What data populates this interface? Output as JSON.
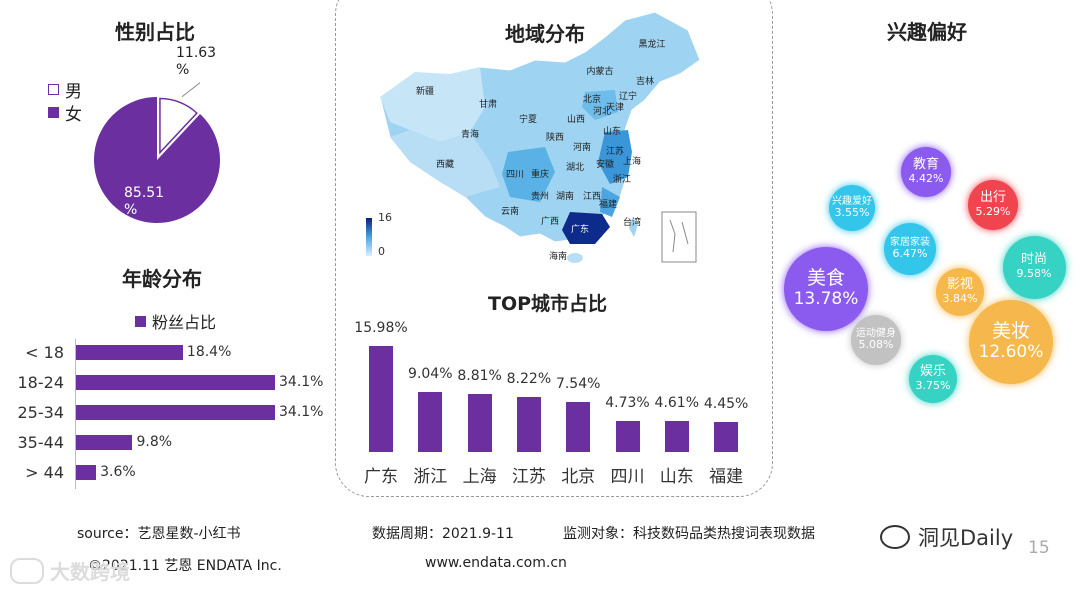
{
  "gender": {
    "title": "性别占比",
    "legend": [
      {
        "label": "男",
        "color": "#6b2fa0",
        "hollow": true
      },
      {
        "label": "女",
        "color": "#6b2fa0",
        "hollow": false
      }
    ],
    "labels": {
      "male": "11.63\n%",
      "female": "85.51\n%"
    }
  },
  "age": {
    "title": "年龄分布",
    "legend_label": "粉丝占比",
    "color": "#6b2fa0"
  },
  "region": {
    "title": "地域分布",
    "scale_max": "16",
    "scale_min": "0",
    "provinces": [
      "黑龙江",
      "吉林",
      "内蒙古",
      "辽宁",
      "新疆",
      "北京",
      "河北",
      "天津",
      "甘肃",
      "宁夏",
      "山西",
      "山东",
      "青海",
      "陕西",
      "河南",
      "江苏",
      "西藏",
      "湖北",
      "安徽",
      "上海",
      "四川",
      "重庆",
      "浙江",
      "贵州",
      "湖南",
      "江西",
      "云南",
      "广西",
      "福建",
      "广东",
      "台湾",
      "海南"
    ]
  },
  "top_cities": {
    "title": "TOP城市占比"
  },
  "interest": {
    "title": "兴趣偏好"
  },
  "footer": {
    "source": "source：艺恩星数-小红书",
    "period": "数据周期：2021.9-11",
    "target": "监测对象：科技数码品类热搜词表现数据",
    "copyright": "©2021.11 艺恩 ENDATA Inc.",
    "website": "www.endata.com.cn",
    "page": "15",
    "watermark_left": "大数跨境",
    "watermark_right": "洞见Daily"
  },
  "chart_data": [
    {
      "type": "pie",
      "title": "性别占比",
      "categories": [
        "男",
        "女"
      ],
      "values": [
        11.63,
        85.51
      ]
    },
    {
      "type": "bar",
      "orientation": "horizontal",
      "title": "年龄分布",
      "series_name": "粉丝占比",
      "categories": [
        "< 18",
        "18-24",
        "25-34",
        "35-44",
        "> 44"
      ],
      "values": [
        18.4,
        34.1,
        34.1,
        9.8,
        3.6
      ],
      "labels": [
        "18.4%",
        "34.1%",
        "34.1%",
        "9.8%",
        "3.6%"
      ]
    },
    {
      "type": "bar",
      "title": "TOP城市占比",
      "categories": [
        "广东",
        "浙江",
        "上海",
        "江苏",
        "北京",
        "四川",
        "山东",
        "福建"
      ],
      "values": [
        15.98,
        9.04,
        8.81,
        8.22,
        7.54,
        4.73,
        4.61,
        4.45
      ],
      "labels": [
        "15.98%",
        "9.04%",
        "8.81%",
        "8.22%",
        "7.54%",
        "4.73%",
        "4.61%",
        "4.45%"
      ]
    },
    {
      "type": "bubble",
      "title": "兴趣偏好",
      "items": [
        {
          "name": "美食",
          "value": "13.78%",
          "v": 13.78,
          "color": "#8b5bf0"
        },
        {
          "name": "美妆",
          "value": "12.60%",
          "v": 12.6,
          "color": "#f6b84c"
        },
        {
          "name": "时尚",
          "value": "9.58%",
          "v": 9.58,
          "color": "#36d2c3"
        },
        {
          "name": "家居家装",
          "value": "6.47%",
          "v": 6.47,
          "color": "#33c5ea"
        },
        {
          "name": "出行",
          "value": "5.29%",
          "v": 5.29,
          "color": "#f0454f"
        },
        {
          "name": "运动健身",
          "value": "5.08%",
          "v": 5.08,
          "color": "#c2c2c2"
        },
        {
          "name": "教育",
          "value": "4.42%",
          "v": 4.42,
          "color": "#8b5bf0"
        },
        {
          "name": "影视",
          "value": "3.84%",
          "v": 3.84,
          "color": "#f6b84c"
        },
        {
          "name": "娱乐",
          "value": "3.75%",
          "v": 3.75,
          "color": "#36d2c3"
        },
        {
          "name": "兴趣爱好",
          "value": "3.55%",
          "v": 3.55,
          "color": "#33c5ea"
        }
      ]
    }
  ]
}
